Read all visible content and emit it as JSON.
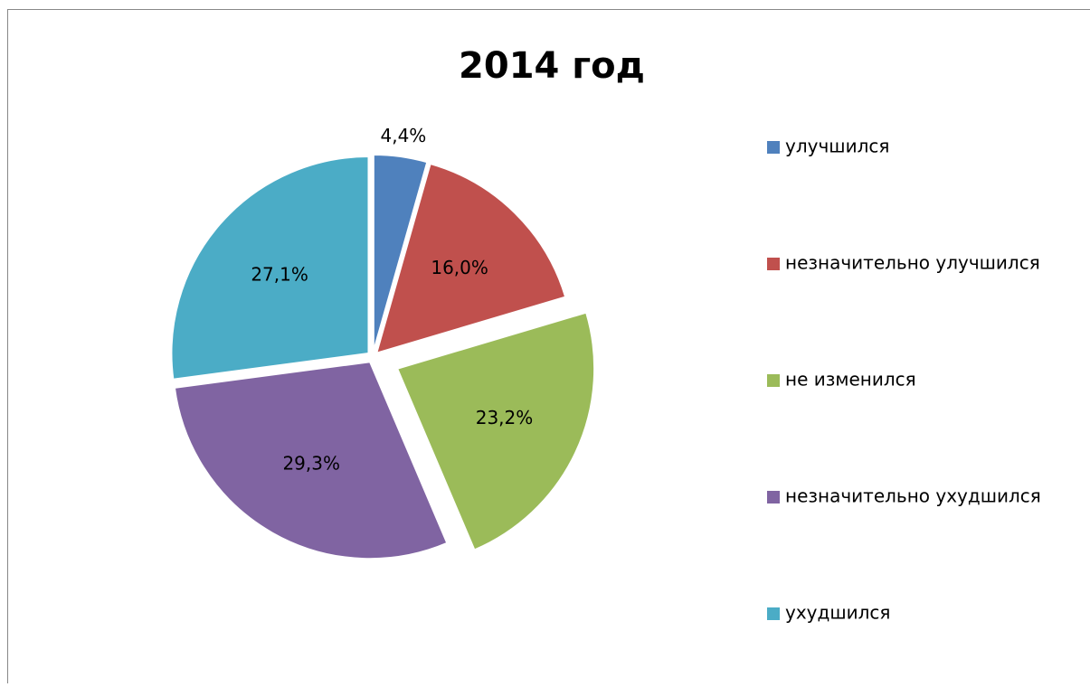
{
  "chart_data": {
    "type": "pie",
    "title": "2014 год",
    "categories": [
      "улучшился",
      "незначительно улучшился",
      "не изменился",
      "незначительно ухудшился",
      "ухудшился"
    ],
    "values": [
      4.4,
      16.0,
      23.2,
      29.3,
      27.1
    ],
    "value_labels": [
      "4,4%",
      "16,0%",
      "23,2%",
      "29,3%",
      "27,1%"
    ],
    "colors": [
      "#4f81bd",
      "#c0504d",
      "#9bbb59",
      "#8064a2",
      "#4bacc6"
    ],
    "legend": "right"
  }
}
